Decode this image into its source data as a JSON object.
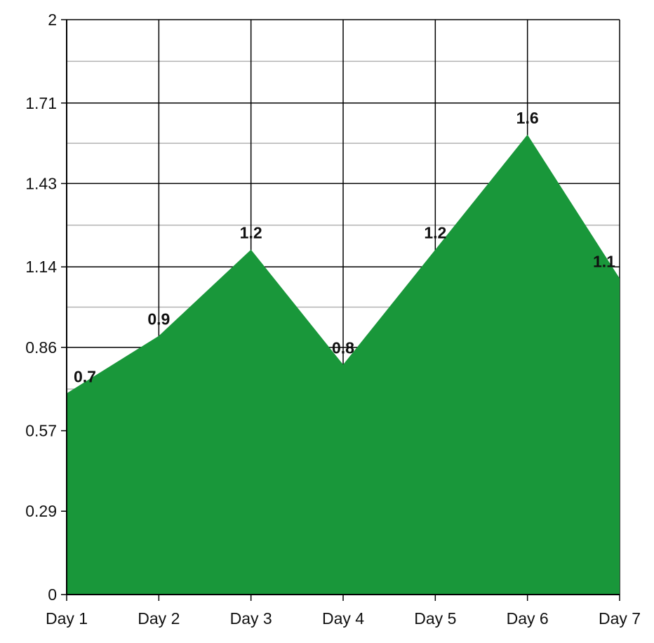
{
  "colors": {
    "area_fill": "#19973a",
    "grid_major": "#000000",
    "grid_minor": "#b3b3b3",
    "text": "#111111",
    "background": "#ffffff"
  },
  "chart_data": {
    "type": "area",
    "title": "",
    "xlabel": "",
    "ylabel": "",
    "categories": [
      "Day 1",
      "Day 2",
      "Day 3",
      "Day 4",
      "Day 5",
      "Day 6",
      "Day 7"
    ],
    "values": [
      0.7,
      0.9,
      1.2,
      0.8,
      1.2,
      1.6,
      1.1
    ],
    "data_labels": [
      "0.7",
      "0.9",
      "1.2",
      "0.8",
      "1.2",
      "1.6",
      "1.1"
    ],
    "ylim": [
      0,
      2
    ],
    "y_ticks": [
      0,
      0.29,
      0.57,
      0.86,
      1.14,
      1.43,
      1.71,
      2
    ],
    "y_tick_labels": [
      "0",
      "0.29",
      "0.57",
      "0.86",
      "1.14",
      "1.43",
      "1.71",
      "2"
    ],
    "grid": true,
    "legend": "none"
  }
}
